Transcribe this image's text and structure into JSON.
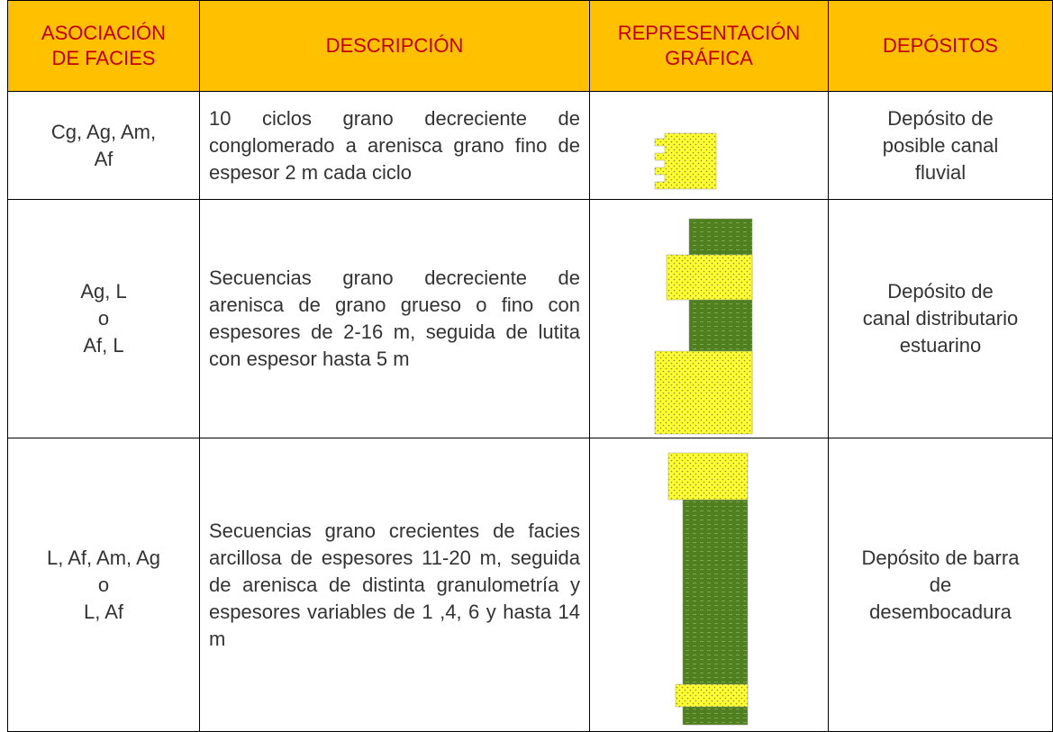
{
  "header": {
    "cells": [
      [
        "ASOCIACIÓN",
        "DE FACIES"
      ],
      [
        "DESCRIPCIÓN"
      ],
      [
        "REPRESENTACIÓN",
        "GRÁFICA"
      ],
      [
        "DEPÓSITOS"
      ]
    ]
  },
  "table": {
    "rows": [
      {
        "facies": [
          "Cg, Ag, Am,",
          "Af"
        ],
        "description": "10 ciclos grano decreciente de conglomerado a arenisca grano fino de espesor 2 m cada ciclo",
        "deposit": [
          "Depósito de",
          "posible canal",
          "fluvial"
        ]
      },
      {
        "facies": [
          "Ag, L",
          "o",
          "Af, L"
        ],
        "description": "Secuencias grano decreciente de arenisca de grano grueso o fino con espesores de 2-16 m, seguida de lutita con espesor hasta 5 m",
        "deposit": [
          "Depósito de",
          "canal distributario",
          "estuarino"
        ]
      },
      {
        "facies": [
          "L, Af, Am, Ag",
          "o",
          "L, Af"
        ],
        "description": "Secuencias grano crecientes de facies arcillosa de espesores 11-20 m, seguida de arenisca de distinta granulometría y espesores variables de 1 ,4, 6 y hasta 14 m",
        "deposit": [
          "Depósito de barra",
          "de",
          "desembocadura"
        ]
      }
    ]
  }
}
